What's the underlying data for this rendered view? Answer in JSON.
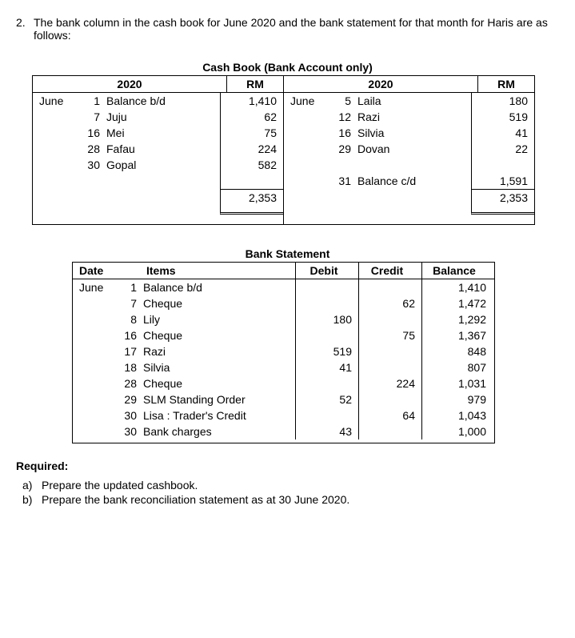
{
  "question": {
    "number": "2.",
    "text": "The bank column in the cash book for June 2020 and the bank statement for that month for Haris are as follows:"
  },
  "cashbook": {
    "title": "Cash Book (Bank Account only)",
    "year_left": "2020",
    "year_right": "2020",
    "currency": "RM",
    "debit": [
      {
        "month": "June",
        "day": "1",
        "desc": "Balance b/d",
        "amt": "1,410"
      },
      {
        "month": "",
        "day": "7",
        "desc": "Juju",
        "amt": "62"
      },
      {
        "month": "",
        "day": "16",
        "desc": "Mei",
        "amt": "75"
      },
      {
        "month": "",
        "day": "28",
        "desc": "Fafau",
        "amt": "224"
      },
      {
        "month": "",
        "day": "30",
        "desc": "Gopal",
        "amt": "582"
      }
    ],
    "debit_total": "2,353",
    "credit": [
      {
        "month": "June",
        "day": "5",
        "desc": "Laila",
        "amt": "180"
      },
      {
        "month": "",
        "day": "12",
        "desc": "Razi",
        "amt": "519"
      },
      {
        "month": "",
        "day": "16",
        "desc": "Silvia",
        "amt": "41"
      },
      {
        "month": "",
        "day": "29",
        "desc": "Dovan",
        "amt": "22"
      }
    ],
    "credit_balance": {
      "month": "",
      "day": "31",
      "desc": "Balance c/d",
      "amt": "1,591"
    },
    "credit_total": "2,353"
  },
  "statement": {
    "title": "Bank Statement",
    "headers": {
      "date": "Date",
      "items": "Items",
      "debit": "Debit",
      "credit": "Credit",
      "balance": "Balance"
    },
    "rows": [
      {
        "month": "June",
        "day": "1",
        "items": "Balance b/d",
        "debit": "",
        "credit": "",
        "balance": "1,410"
      },
      {
        "month": "",
        "day": "7",
        "items": "Cheque",
        "debit": "",
        "credit": "62",
        "balance": "1,472"
      },
      {
        "month": "",
        "day": "8",
        "items": "Lily",
        "debit": "180",
        "credit": "",
        "balance": "1,292"
      },
      {
        "month": "",
        "day": "16",
        "items": "Cheque",
        "debit": "",
        "credit": "75",
        "balance": "1,367"
      },
      {
        "month": "",
        "day": "17",
        "items": "Razi",
        "debit": "519",
        "credit": "",
        "balance": "848"
      },
      {
        "month": "",
        "day": "18",
        "items": "Silvia",
        "debit": "41",
        "credit": "",
        "balance": "807"
      },
      {
        "month": "",
        "day": "28",
        "items": "Cheque",
        "debit": "",
        "credit": "224",
        "balance": "1,031"
      },
      {
        "month": "",
        "day": "29",
        "items": "SLM Standing Order",
        "debit": "52",
        "credit": "",
        "balance": "979"
      },
      {
        "month": "",
        "day": "30",
        "items": "Lisa : Trader's Credit",
        "debit": "",
        "credit": "64",
        "balance": "1,043"
      },
      {
        "month": "",
        "day": "30",
        "items": "Bank charges",
        "debit": "43",
        "credit": "",
        "balance": "1,000"
      }
    ]
  },
  "required": {
    "label": "Required:",
    "items": [
      {
        "letter": "a)",
        "text": "Prepare the updated cashbook."
      },
      {
        "letter": "b)",
        "text": "Prepare the bank reconciliation statement as at 30 June 2020."
      }
    ]
  }
}
